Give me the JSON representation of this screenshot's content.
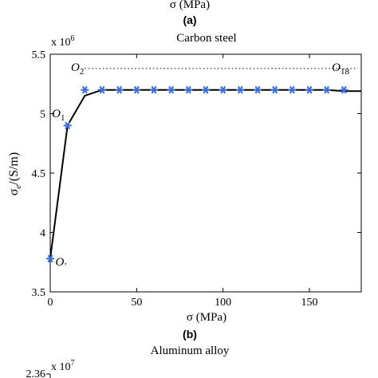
{
  "top_fragment": {
    "xlabel": "σ (MPa)",
    "caption": "(a)"
  },
  "chart_data": {
    "type": "line",
    "title": "Carbon steel",
    "xlabel": "σ (MPa)",
    "ylabel_symbol": "σ",
    "ylabel_subscript": "e",
    "ylabel_unit": "/(S/m)",
    "y_exponent_base": "x 10",
    "y_exponent_power": "6",
    "xlim": [
      0,
      180
    ],
    "ylim": [
      3.5,
      5.5
    ],
    "xticks": [
      0,
      50,
      100,
      150
    ],
    "yticks": [
      3.5,
      4,
      4.5,
      5,
      5.5
    ],
    "grid": false,
    "series": [
      {
        "x": [
          0,
          10,
          20,
          30,
          40,
          50,
          60,
          70,
          80,
          90,
          100,
          110,
          120,
          130,
          140,
          150,
          160,
          170,
          180
        ],
        "y": [
          3.78,
          4.9,
          5.15,
          5.2,
          5.2,
          5.2,
          5.2,
          5.2,
          5.2,
          5.2,
          5.2,
          5.2,
          5.2,
          5.2,
          5.2,
          5.2,
          5.2,
          5.19,
          5.19
        ],
        "color": "#000000"
      },
      {
        "x": [
          0,
          10,
          20,
          30,
          40,
          50,
          60,
          70,
          80,
          90,
          100,
          110,
          120,
          130,
          140,
          150,
          160,
          170
        ],
        "y": [
          3.78,
          4.9,
          5.2,
          5.2,
          5.2,
          5.2,
          5.2,
          5.2,
          5.2,
          5.2,
          5.2,
          5.2,
          5.2,
          5.2,
          5.2,
          5.2,
          5.2,
          5.2
        ],
        "marker": "asterisk",
        "color": "#3b6fd9"
      }
    ],
    "reference_line": {
      "y": 5.38,
      "x_from": 20,
      "x_to": 178,
      "style": "dotted"
    },
    "annotations": [
      {
        "symbol": "O",
        "sub": "’",
        "x": 3,
        "y": 3.72,
        "anchor": "start"
      },
      {
        "symbol": "O",
        "sub": "1",
        "x": 1,
        "y": 4.97,
        "anchor": "start"
      },
      {
        "symbol": "O",
        "sub": "2",
        "x": 12,
        "y": 5.36,
        "anchor": "start"
      },
      {
        "symbol": "O",
        "sub": "18",
        "x": 163,
        "y": 5.36,
        "anchor": "start"
      }
    ],
    "caption": "(b)"
  },
  "bottom_fragment": {
    "title": "Aluminum alloy",
    "y_exponent_base": "x 10",
    "y_exponent_power": "7",
    "first_tick": "2.36"
  }
}
